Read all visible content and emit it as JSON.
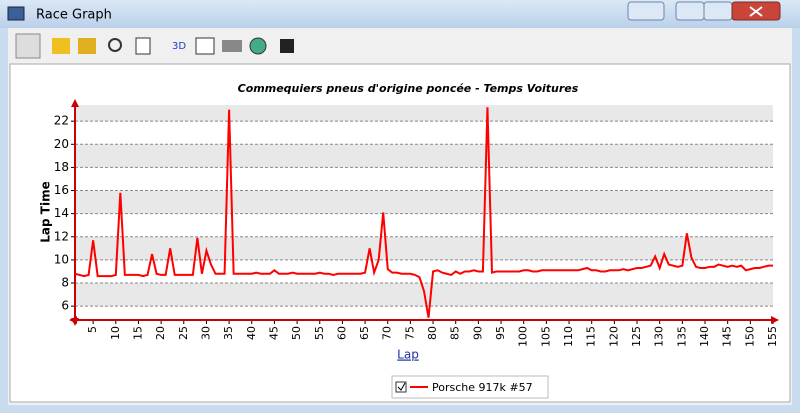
{
  "window": {
    "title": "Race Graph"
  },
  "toolbar": {
    "label_3d": "3D"
  },
  "chart_data": {
    "type": "line",
    "title": "Commequiers pneus d'origine poncée - Temps Voitures",
    "x_label": "Lap",
    "y_label": "Lap Time",
    "x": [
      1,
      2,
      3,
      4,
      5,
      6,
      7,
      8,
      9,
      10,
      11,
      12,
      13,
      14,
      15,
      16,
      17,
      18,
      19,
      20,
      21,
      22,
      23,
      24,
      25,
      26,
      27,
      28,
      29,
      30,
      31,
      32,
      33,
      34,
      35,
      36,
      37,
      38,
      39,
      40,
      41,
      42,
      43,
      44,
      45,
      46,
      47,
      48,
      49,
      50,
      51,
      52,
      53,
      54,
      55,
      56,
      57,
      58,
      59,
      60,
      61,
      62,
      63,
      64,
      65,
      66,
      67,
      68,
      69,
      70,
      71,
      72,
      73,
      74,
      75,
      76,
      77,
      78,
      79,
      80,
      81,
      82,
      83,
      84,
      85,
      86,
      87,
      88,
      89,
      90,
      91,
      92,
      93,
      94,
      95,
      96,
      97,
      98,
      99,
      100,
      101,
      102,
      103,
      104,
      105,
      106,
      107,
      108,
      109,
      110,
      111,
      112,
      113,
      114,
      115,
      116,
      117,
      118,
      119,
      120,
      121,
      122,
      123,
      124,
      125,
      126,
      127,
      128,
      129,
      130,
      131,
      132,
      133,
      134,
      135,
      136,
      137,
      138,
      139,
      140,
      141,
      142,
      143,
      144,
      145,
      146,
      147,
      148,
      149,
      150,
      151,
      152,
      153,
      154,
      155
    ],
    "series": [
      {
        "name": "Porsche 917k #57",
        "color": "#ff0000",
        "values": [
          8.8,
          8.7,
          8.6,
          8.7,
          11.7,
          8.6,
          8.6,
          8.6,
          8.6,
          8.7,
          15.8,
          8.7,
          8.7,
          8.7,
          8.7,
          8.6,
          8.7,
          10.5,
          8.8,
          8.7,
          8.7,
          11.0,
          8.7,
          8.7,
          8.7,
          8.7,
          8.7,
          11.9,
          8.8,
          10.8,
          9.6,
          8.8,
          8.8,
          8.8,
          23.0,
          8.8,
          8.8,
          8.8,
          8.8,
          8.8,
          8.9,
          8.8,
          8.8,
          8.8,
          9.1,
          8.8,
          8.8,
          8.8,
          8.9,
          8.8,
          8.8,
          8.8,
          8.8,
          8.8,
          8.9,
          8.8,
          8.8,
          8.7,
          8.8,
          8.8,
          8.8,
          8.8,
          8.8,
          8.8,
          8.9,
          11.0,
          8.9,
          10.0,
          14.1,
          9.2,
          8.9,
          8.9,
          8.8,
          8.8,
          8.8,
          8.7,
          8.5,
          7.3,
          5.0,
          9.0,
          9.1,
          8.9,
          8.8,
          8.7,
          9.0,
          8.8,
          9.0,
          9.0,
          9.1,
          9.0,
          9.0,
          23.2,
          8.9,
          9.0,
          9.0,
          9.0,
          9.0,
          9.0,
          9.0,
          9.1,
          9.1,
          9.0,
          9.0,
          9.1,
          9.1,
          9.1,
          9.1,
          9.1,
          9.1,
          9.1,
          9.1,
          9.1,
          9.2,
          9.3,
          9.1,
          9.1,
          9.0,
          9.0,
          9.1,
          9.1,
          9.1,
          9.2,
          9.1,
          9.2,
          9.3,
          9.3,
          9.4,
          9.5,
          10.3,
          9.3,
          10.5,
          9.6,
          9.5,
          9.4,
          9.5,
          12.3,
          10.2,
          9.4,
          9.3,
          9.3,
          9.4,
          9.4,
          9.6,
          9.5,
          9.4,
          9.5,
          9.4,
          9.5,
          9.1,
          9.2,
          9.3,
          9.3,
          9.4,
          9.5,
          9.5
        ]
      }
    ],
    "xlim": [
      1,
      155
    ],
    "ylim": [
      4.8,
      23.4
    ],
    "xticks": [
      5,
      10,
      15,
      20,
      25,
      30,
      35,
      40,
      45,
      50,
      55,
      60,
      65,
      70,
      75,
      80,
      85,
      90,
      95,
      100,
      105,
      110,
      115,
      120,
      125,
      130,
      135,
      140,
      145,
      150,
      155
    ],
    "yticks": [
      6,
      8,
      10,
      12,
      14,
      16,
      18,
      20,
      22
    ],
    "grid": true
  }
}
